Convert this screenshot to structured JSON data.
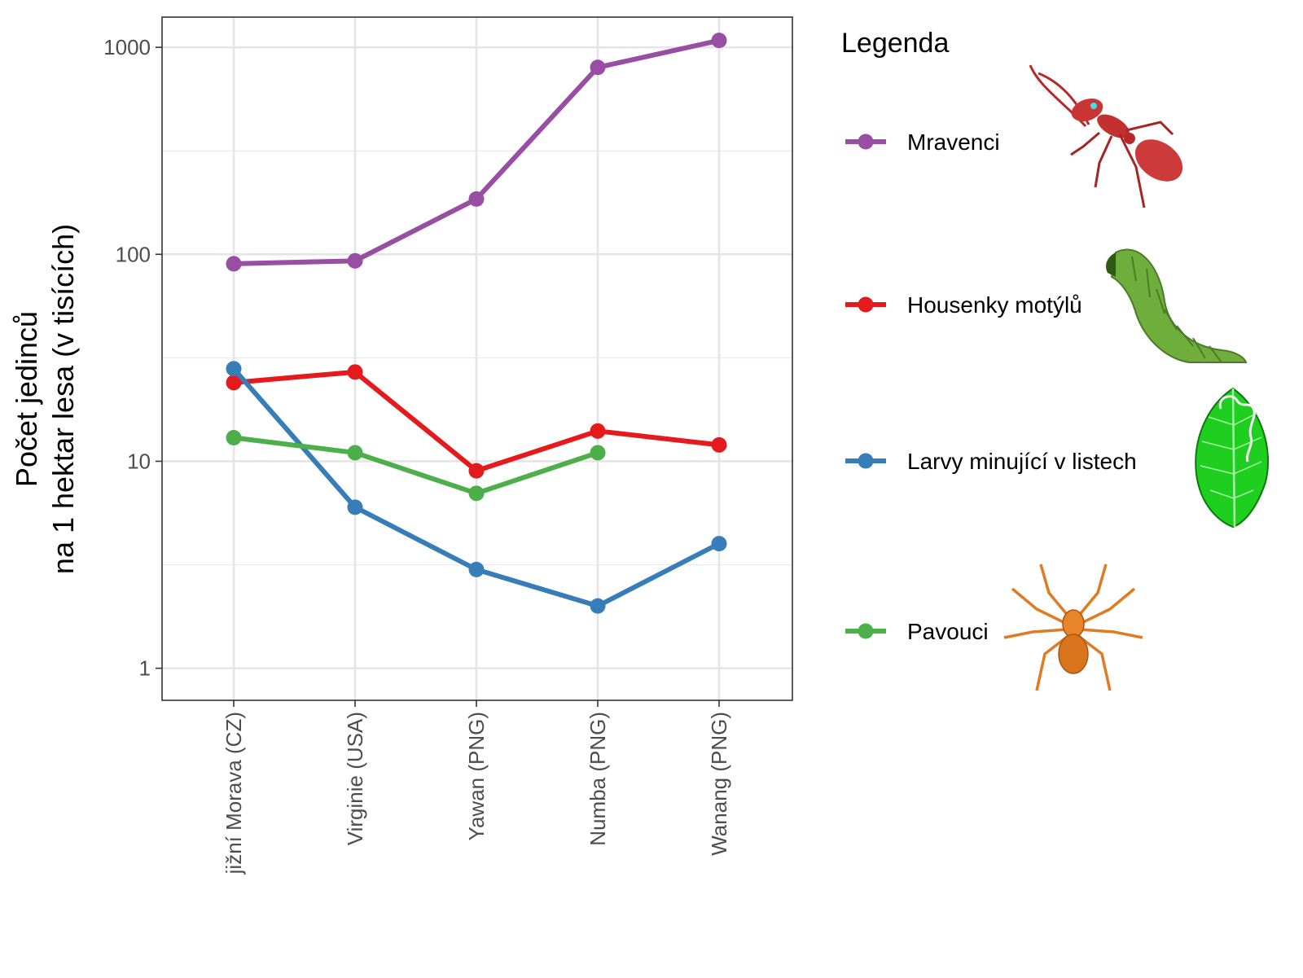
{
  "chart_data": {
    "type": "line",
    "log_scale_y": true,
    "ylim": [
      0.7,
      1400
    ],
    "y_ticks": [
      {
        "value": 1,
        "label": "1"
      },
      {
        "value": 10,
        "label": "10"
      },
      {
        "value": 100,
        "label": "100"
      },
      {
        "value": 1000,
        "label": "1000"
      }
    ],
    "y_minor_gridlines": [
      3.16,
      31.6,
      316
    ],
    "ylabel_lines": [
      "Počet jedinců",
      "na 1 hektar lesa (v tisících)"
    ],
    "xlabel": "",
    "categories": [
      "jižní Morava (CZ)",
      "Virginie (USA)",
      "Yawan (PNG)",
      "Numba (PNG)",
      "Wanang (PNG)"
    ],
    "grid": true,
    "legend": {
      "title": "Legenda",
      "position": "right",
      "icons": [
        "ant-icon",
        "caterpillar-icon",
        "mined-leaf-icon",
        "spider-icon"
      ]
    },
    "series": [
      {
        "name": "Mravenci",
        "color": "#984ea3",
        "values": [
          90,
          93,
          185,
          800,
          1080
        ]
      },
      {
        "name": "Housenky motýlů",
        "color": "#e41a1c",
        "values": [
          24,
          27,
          9,
          14,
          12
        ]
      },
      {
        "name": "Larvy minující v listech",
        "color": "#377eb8",
        "values": [
          28,
          6,
          3,
          2,
          4
        ]
      },
      {
        "name": "Pavouci",
        "color": "#4daf4a",
        "values": [
          13,
          11,
          7,
          11,
          null
        ]
      }
    ]
  }
}
